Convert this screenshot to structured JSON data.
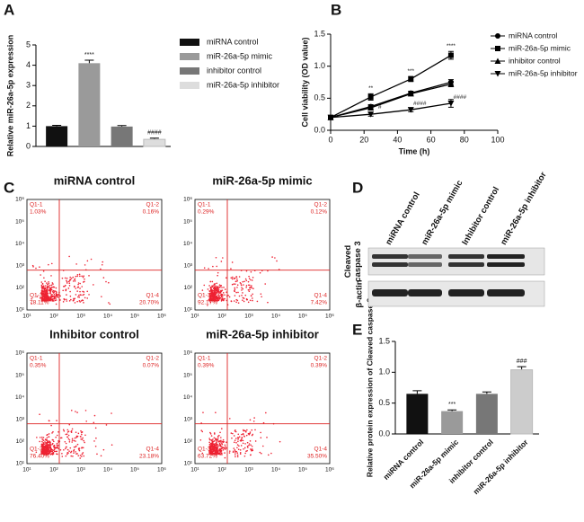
{
  "chart_data": [
    {
      "type": "bar",
      "panel_label": "A",
      "ylabel": "Relative miR-26a-5p expression",
      "categories": [
        "miRNA control",
        "miR-26a-5p mimic",
        "inhibitor control",
        "miR-26a-5p inhibitor"
      ],
      "values": [
        1.0,
        4.1,
        0.98,
        0.35
      ],
      "errors": [
        0.04,
        0.15,
        0.05,
        0.06
      ],
      "significance": [
        null,
        "****",
        null,
        "####"
      ],
      "colors": [
        "#111111",
        "#9a9a9a",
        "#777777",
        "#dddddd"
      ],
      "ylim": [
        0,
        5
      ],
      "yticks": [
        0,
        1,
        2,
        3,
        4,
        5
      ],
      "legend": "right"
    },
    {
      "type": "line",
      "panel_label": "B",
      "xlabel": "Time (h)",
      "ylabel": "Cell viability (OD value)",
      "x": [
        0,
        24,
        48,
        72
      ],
      "series": [
        {
          "name": "miRNA control",
          "color": "#000000",
          "marker": "circle",
          "values": [
            0.2,
            0.37,
            0.58,
            0.75
          ],
          "errors": [
            0.02,
            0.03,
            0.03,
            0.04
          ],
          "significance": [
            null,
            null,
            null,
            null
          ]
        },
        {
          "name": "miR-26a-5p mimic",
          "color": "#000000",
          "marker": "square",
          "values": [
            0.2,
            0.52,
            0.8,
            1.17
          ],
          "errors": [
            0.02,
            0.05,
            0.04,
            0.06
          ],
          "significance": [
            null,
            "**",
            "***",
            "****"
          ]
        },
        {
          "name": "inhibitor control",
          "color": "#000000",
          "marker": "triangle",
          "values": [
            0.2,
            0.35,
            0.57,
            0.72
          ],
          "errors": [
            0.02,
            0.03,
            0.03,
            0.04
          ],
          "significance": [
            null,
            null,
            null,
            null
          ]
        },
        {
          "name": "miR-26a-5p inhibitor",
          "color": "#000000",
          "marker": "triangle-down",
          "values": [
            0.2,
            0.25,
            0.32,
            0.42
          ],
          "errors": [
            0.02,
            0.03,
            0.03,
            0.06
          ],
          "significance": [
            null,
            "#",
            "####",
            "####"
          ]
        }
      ],
      "xlim": [
        0,
        100
      ],
      "xticks": [
        0,
        20,
        40,
        60,
        80,
        100
      ],
      "ylim": [
        0,
        1.5
      ],
      "yticks": [
        {
          "value": 0,
          "label": "0.0"
        },
        {
          "value": 0.5,
          "label": "0.5"
        },
        {
          "value": 1.0,
          "label": "1.0"
        },
        {
          "value": 1.5,
          "label": "1.5"
        }
      ],
      "legend": "right"
    },
    {
      "type": "bar",
      "panel_label": "E",
      "ylabel": "Relative protein expression of Cleaved caspase 3",
      "categories": [
        "miRNA control",
        "miR-26a-5p mimic",
        "inhibitor control",
        "miR-26a-5p inhibitor"
      ],
      "values": [
        0.65,
        0.37,
        0.65,
        1.04
      ],
      "errors": [
        0.05,
        0.02,
        0.03,
        0.05
      ],
      "significance": [
        null,
        "***",
        null,
        "###"
      ],
      "colors": [
        "#111111",
        "#9a9a9a",
        "#777777",
        "#cccccc"
      ],
      "ylim": [
        0,
        1.5
      ],
      "yticks": [
        {
          "value": 0,
          "label": "0.0"
        },
        {
          "value": 0.5,
          "label": "0.5"
        },
        {
          "value": 1.0,
          "label": "1.0"
        },
        {
          "value": 1.5,
          "label": "1.5"
        }
      ]
    }
  ],
  "flow": {
    "panel_label": "C",
    "axis_ticks": [
      "10¹",
      "10²",
      "10³",
      "10⁴",
      "10⁵",
      "10⁶"
    ],
    "plots": [
      {
        "title": "miRNA control",
        "quadrants": [
          {
            "name": "Q1-1",
            "value": "1.03%"
          },
          {
            "name": "Q1-2",
            "value": "0.16%"
          },
          {
            "name": "Q1-3",
            "value": "78.11%"
          },
          {
            "name": "Q1-4",
            "value": "20.70%"
          }
        ]
      },
      {
        "title": "miR-26a-5p mimic",
        "quadrants": [
          {
            "name": "Q1-1",
            "value": "0.29%"
          },
          {
            "name": "Q1-2",
            "value": "0.12%"
          },
          {
            "name": "Q1-3",
            "value": "92.17%"
          },
          {
            "name": "Q1-4",
            "value": "7.42%"
          }
        ]
      },
      {
        "title": "Inhibitor control",
        "quadrants": [
          {
            "name": "Q1-1",
            "value": "0.35%"
          },
          {
            "name": "Q1-2",
            "value": "0.07%"
          },
          {
            "name": "Q1-3",
            "value": "76.40%"
          },
          {
            "name": "Q1-4",
            "value": "23.18%"
          }
        ]
      },
      {
        "title": "miR-26a-5p inhibitor",
        "quadrants": [
          {
            "name": "Q1-1",
            "value": "0.39%"
          },
          {
            "name": "Q1-2",
            "value": "0.39%"
          },
          {
            "name": "Q1-3",
            "value": "63.72%"
          },
          {
            "name": "Q1-4",
            "value": "35.50%"
          }
        ]
      }
    ]
  },
  "blot": {
    "panel_label": "D",
    "lanes": [
      "miRNA control",
      "miR-26a-5p mimic",
      "Inhibitor control",
      "miR-26a-5p inhibitor"
    ],
    "rows": [
      {
        "label_lines": [
          "Cleaved",
          "caspase 3"
        ]
      },
      {
        "label_lines": [
          "β-actin"
        ]
      }
    ]
  }
}
